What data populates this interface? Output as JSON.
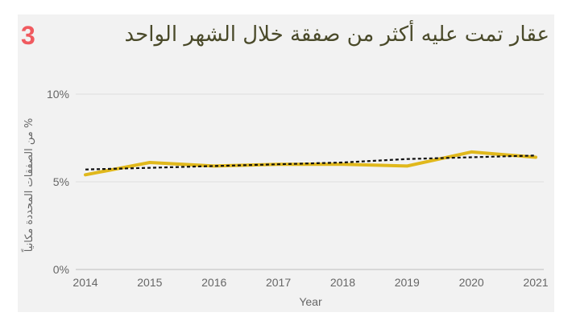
{
  "badge": "3",
  "title": "عقار تمت عليه أكثر من صفقة خلال الشهر الواحد",
  "chart_data": {
    "type": "line",
    "x": [
      "2014",
      "2015",
      "2016",
      "2017",
      "2018",
      "2019",
      "2020",
      "2021"
    ],
    "series": [
      {
        "color": "#e0b81c",
        "values": [
          5.4,
          6.1,
          5.9,
          6.0,
          6.0,
          5.9,
          6.7,
          6.4
        ]
      },
      {
        "style": "dotted-trendline",
        "color": "#111111",
        "values": [
          5.7,
          5.8,
          5.9,
          6.0,
          6.1,
          6.3,
          6.4,
          6.5
        ]
      }
    ],
    "ylim": [
      0,
      10
    ],
    "yticks": [
      {
        "value": 0,
        "label": "0%"
      },
      {
        "value": 5,
        "label": "5%"
      },
      {
        "value": 10,
        "label": "10%"
      }
    ],
    "xlabel": "Year",
    "ylabel": "% من الصفقات المحددة مكانياً",
    "grid": true
  }
}
